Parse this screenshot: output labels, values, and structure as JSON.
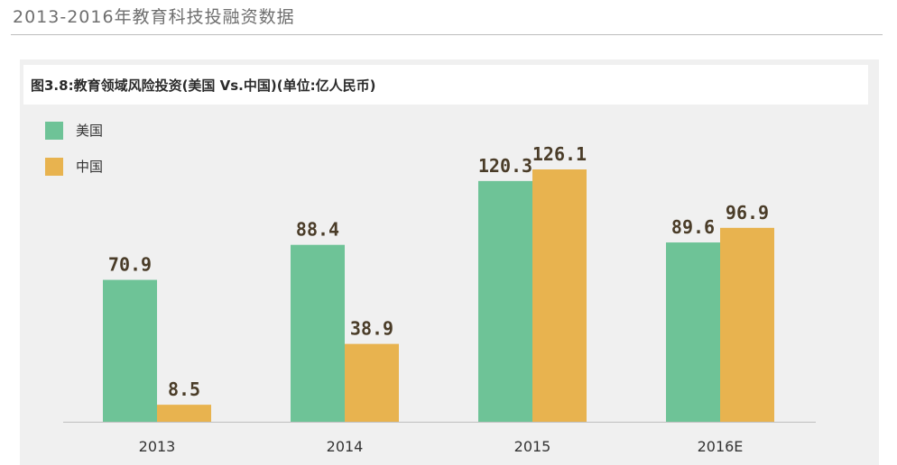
{
  "header": {
    "title": "2013-2016年教育科技投融资数据"
  },
  "chart_data": {
    "type": "bar",
    "title": "图3.8:教育领域风险投资(美国 Vs.中国)(单位:亿人民币)",
    "categories": [
      "2013",
      "2014",
      "2015",
      "2016E"
    ],
    "series": [
      {
        "name": "美国",
        "values": [
          70.9,
          88.4,
          120.3,
          89.6
        ],
        "color": "#6ec397"
      },
      {
        "name": "中国",
        "values": [
          8.5,
          38.9,
          126.1,
          96.9
        ],
        "color": "#e8b34f"
      }
    ],
    "data_labels": [
      [
        "70.9",
        "88.4",
        "120.3",
        "89.6"
      ],
      [
        "8.5",
        "38.9",
        "126.1",
        "96.9"
      ]
    ],
    "xlabel": "",
    "ylabel": "",
    "ylim": [
      0,
      126.1
    ],
    "grid": false,
    "legend_position": "top-left"
  }
}
